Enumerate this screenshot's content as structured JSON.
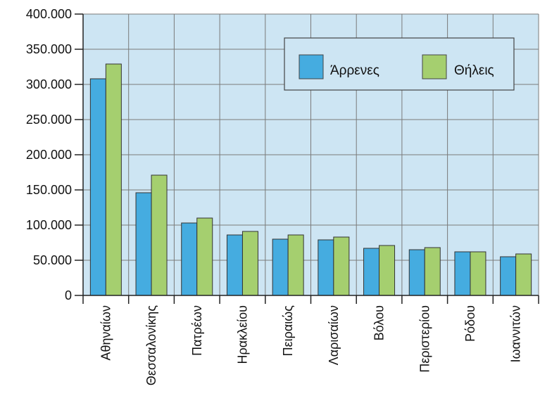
{
  "chart_data": {
    "type": "bar",
    "categories": [
      "Αθηναίων",
      "Θεσσαλονίκης",
      "Πατρέων",
      "Ηρακλείου",
      "Πειραιώς",
      "Λαρισαίων",
      "Βόλου",
      "Περιστερίου",
      "Ρόδου",
      "Ιωαννιτών"
    ],
    "series": [
      {
        "name": "Άρρενες",
        "values": [
          308000,
          146000,
          103000,
          86000,
          80000,
          79000,
          67000,
          65000,
          62000,
          55000
        ]
      },
      {
        "name": "Θήλεις",
        "values": [
          329000,
          171000,
          110000,
          91000,
          86000,
          83000,
          71000,
          68000,
          62000,
          59000
        ]
      }
    ],
    "yticks": [
      "0",
      "50.000",
      "100.000",
      "150.000",
      "200.000",
      "250.000",
      "300.000",
      "350.000",
      "400.000"
    ],
    "ylim": [
      0,
      400000
    ],
    "grid": true,
    "legend_position": "top-right",
    "colors": {
      "series1": "#45ace0",
      "series2": "#a5cf6f",
      "plot_bg": "#cde5f3",
      "grid": "#7a7a7a",
      "axis": "#222222"
    }
  }
}
